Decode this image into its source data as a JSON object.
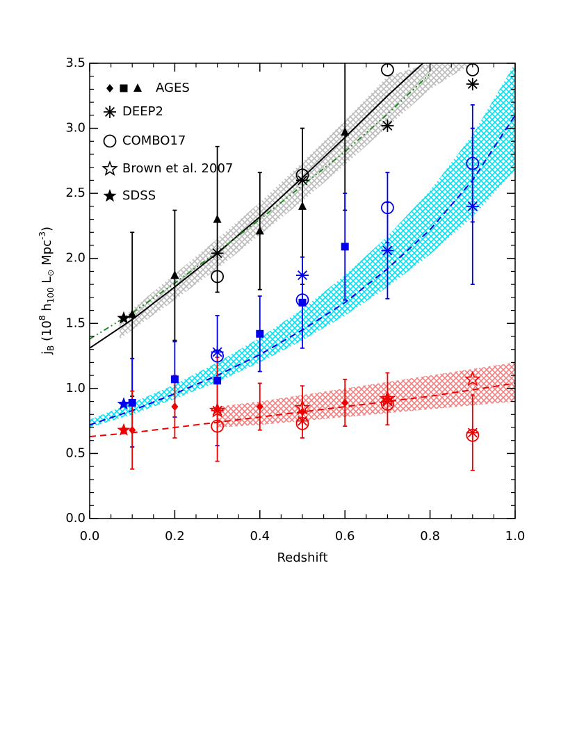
{
  "chart_data": {
    "type": "scatter",
    "xlabel": "Redshift",
    "ylabel": [
      {
        "text": "j",
        "shift": "base"
      },
      {
        "text": "B",
        "shift": "sub"
      },
      {
        "text": " (10",
        "shift": "base"
      },
      {
        "text": "8",
        "shift": "sup"
      },
      {
        "text": " h",
        "shift": "base"
      },
      {
        "text": "100",
        "shift": "sub"
      },
      {
        "text": " L",
        "shift": "base"
      },
      {
        "text": "⊙",
        "shift": "sub"
      },
      {
        "text": " Mpc",
        "shift": "base"
      },
      {
        "text": "-3",
        "shift": "sup"
      },
      {
        "text": ")",
        "shift": "base"
      }
    ],
    "xlim": [
      0,
      1
    ],
    "ylim": [
      0,
      3.5
    ],
    "xticks": [
      {
        "value": 0,
        "label": "0.0"
      },
      0.2,
      0.4,
      0.6,
      0.8,
      {
        "value": 1,
        "label": "1.0"
      }
    ],
    "yticks": [
      {
        "value": 0,
        "label": "0.0"
      },
      0.5,
      {
        "value": 1,
        "label": "1.0"
      },
      1.5,
      {
        "value": 2,
        "label": "2.0"
      },
      2.5,
      {
        "value": 3,
        "label": "3.0"
      },
      3.5
    ],
    "xminor": 4,
    "yminor": 5,
    "legend": [
      {
        "label": "AGES",
        "markers": [
          "diamond",
          "square",
          "triangle"
        ]
      },
      {
        "label": "DEEP2",
        "markers": [
          "asterisk"
        ]
      },
      {
        "label": "COMBO17",
        "markers": [
          "circle"
        ]
      },
      {
        "label": "Brown et al. 2007",
        "markers": [
          "openstar"
        ]
      },
      {
        "label": "SDSS",
        "markers": [
          "star"
        ]
      }
    ],
    "bands": [
      {
        "color": "#bbbbbb",
        "x": [
          0.07,
          0.1,
          0.2,
          0.3,
          0.4,
          0.5,
          0.6,
          0.7,
          0.8,
          0.9
        ],
        "lower": [
          1.38,
          1.45,
          1.68,
          1.92,
          2.18,
          2.44,
          2.72,
          3.01,
          3.3,
          3.5
        ],
        "upper": [
          1.52,
          1.61,
          1.88,
          2.15,
          2.43,
          2.74,
          3.06,
          3.4,
          3.5,
          3.5
        ]
      },
      {
        "color": "#00e0f0",
        "x": [
          0,
          0.1,
          0.2,
          0.3,
          0.4,
          0.5,
          0.6,
          0.7,
          0.8,
          0.9,
          1
        ],
        "lower": [
          0.7,
          0.8,
          0.92,
          1.05,
          1.2,
          1.37,
          1.56,
          1.78,
          2.03,
          2.32,
          2.68
        ],
        "upper": [
          0.76,
          0.89,
          1.03,
          1.2,
          1.39,
          1.61,
          1.87,
          2.17,
          2.52,
          2.95,
          3.5
        ]
      },
      {
        "color": "#f08080",
        "x": [
          0.3,
          0.4,
          0.5,
          0.6,
          0.7,
          0.8,
          0.9,
          1
        ],
        "lower": [
          0.7,
          0.72,
          0.75,
          0.78,
          0.81,
          0.84,
          0.87,
          0.9
        ],
        "upper": [
          0.86,
          0.9,
          0.95,
          1.0,
          1.05,
          1.1,
          1.15,
          1.2
        ]
      }
    ],
    "fits": [
      {
        "color": "#000000",
        "dash": "solid",
        "x": [
          0,
          0.1,
          0.2,
          0.3,
          0.4,
          0.5,
          0.6,
          0.7,
          0.8
        ],
        "values": [
          1.31,
          1.53,
          1.78,
          2.04,
          2.32,
          2.62,
          2.93,
          3.25,
          3.55
        ]
      },
      {
        "color": "#228b22",
        "dash": "dashdot",
        "x": [
          0,
          0.1,
          0.2,
          0.3,
          0.4,
          0.5,
          0.6,
          0.7,
          0.8
        ],
        "values": [
          1.38,
          1.58,
          1.81,
          2.05,
          2.3,
          2.56,
          2.82,
          3.11,
          3.42
        ]
      },
      {
        "color": "#0000ee",
        "dash": "dashed",
        "x": [
          0,
          0.1,
          0.2,
          0.3,
          0.4,
          0.5,
          0.6,
          0.7,
          0.8,
          0.9,
          1
        ],
        "values": [
          0.72,
          0.83,
          0.96,
          1.1,
          1.26,
          1.45,
          1.66,
          1.92,
          2.22,
          2.6,
          3.1
        ]
      },
      {
        "color": "#ee0000",
        "dash": "dashed",
        "x": [
          0,
          0.1,
          0.2,
          0.3,
          0.4,
          0.5,
          0.6,
          0.7,
          0.8,
          0.9,
          1
        ],
        "values": [
          0.63,
          0.66,
          0.7,
          0.74,
          0.78,
          0.82,
          0.86,
          0.9,
          0.94,
          0.99,
          1.04
        ]
      }
    ],
    "series": [
      {
        "marker": "triangle",
        "color": "#000000",
        "x": [
          0.1,
          0.2,
          0.3,
          0.4,
          0.5,
          0.6
        ],
        "values": [
          1.57,
          1.87,
          2.3,
          2.21,
          2.4,
          2.97
        ],
        "errors": [
          0.63,
          0.5,
          0.56,
          0.45,
          0.6,
          0.6
        ]
      },
      {
        "marker": "asterisk",
        "color": "#000000",
        "x": [
          0.3,
          0.5,
          0.7,
          0.9
        ],
        "values": [
          2.04,
          2.6,
          3.02,
          3.34
        ]
      },
      {
        "marker": "circle",
        "color": "#000000",
        "x": [
          0.3,
          0.5,
          0.7,
          0.9
        ],
        "values": [
          1.86,
          2.64,
          3.45,
          3.45
        ]
      },
      {
        "marker": "star",
        "color": "#000000",
        "x": [
          0.08
        ],
        "values": [
          1.54
        ]
      },
      {
        "marker": "square",
        "color": "#0000ee",
        "x": [
          0.1,
          0.2,
          0.3,
          0.4,
          0.5,
          0.6
        ],
        "values": [
          0.89,
          1.07,
          1.06,
          1.42,
          1.66,
          2.09
        ],
        "errors": [
          0.34,
          0.29,
          0.5,
          0.29,
          0.35,
          0.41
        ]
      },
      {
        "marker": "asterisk",
        "color": "#0000ee",
        "x": [
          0.3,
          0.5,
          0.7,
          0.9
        ],
        "values": [
          1.28,
          1.87,
          2.06,
          2.4
        ],
        "errors": [
          null,
          null,
          0.37,
          0.6
        ]
      },
      {
        "marker": "circle",
        "color": "#0000ee",
        "x": [
          0.3,
          0.5,
          0.7,
          0.9
        ],
        "values": [
          1.25,
          1.68,
          2.39,
          2.73
        ],
        "errors": [
          null,
          null,
          0.27,
          0.45
        ]
      },
      {
        "marker": "star",
        "color": "#0000ee",
        "x": [
          0.08
        ],
        "values": [
          0.88
        ]
      },
      {
        "marker": "diamond",
        "color": "#ee0000",
        "x": [
          0.1,
          0.2,
          0.3,
          0.4,
          0.5,
          0.6,
          0.7
        ],
        "values": [
          0.68,
          0.86,
          0.84,
          0.86,
          0.82,
          0.89,
          0.92
        ],
        "errors": [
          0.3,
          0.24,
          0.4,
          0.18,
          0.2,
          0.18,
          0.2
        ]
      },
      {
        "marker": "asterisk",
        "color": "#ee0000",
        "x": [
          0.3,
          0.5,
          0.7,
          0.9
        ],
        "values": [
          0.83,
          0.75,
          0.9,
          0.66
        ],
        "errors": [
          null,
          null,
          null,
          0.29
        ]
      },
      {
        "marker": "circle",
        "color": "#ee0000",
        "x": [
          0.3,
          0.5,
          0.7,
          0.9
        ],
        "values": [
          0.71,
          0.73,
          0.88,
          0.64
        ]
      },
      {
        "marker": "openstar",
        "color": "#ee0000",
        "x": [
          0.3,
          0.5,
          0.7,
          0.9
        ],
        "values": [
          0.83,
          0.85,
          0.92,
          1.07
        ]
      },
      {
        "marker": "star",
        "color": "#ee0000",
        "x": [
          0.08
        ],
        "values": [
          0.68
        ]
      }
    ]
  }
}
